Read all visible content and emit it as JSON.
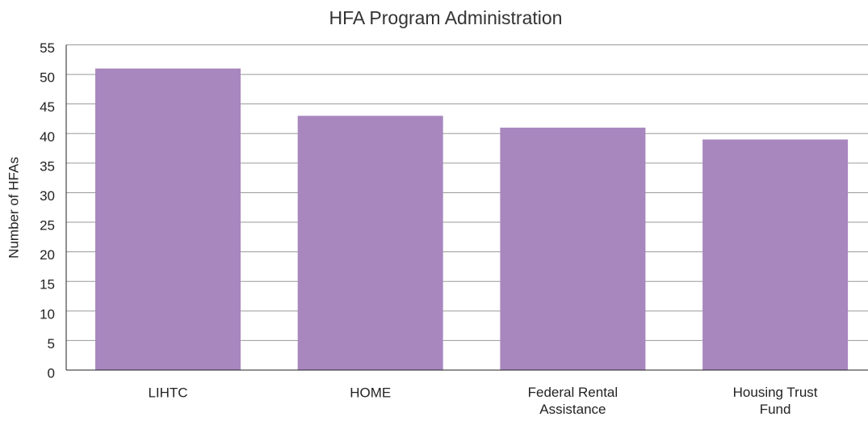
{
  "chart_data": {
    "type": "bar",
    "title": "HFA Program Administration",
    "y_label": "Number of HFAs",
    "categories": [
      "LIHTC",
      "HOME",
      "Federal Rental Assistance",
      "Housing Trust Fund"
    ],
    "values": [
      51,
      43,
      41,
      39
    ],
    "color": "#a887bf",
    "ylim": [
      0,
      55
    ],
    "yticks": [
      0,
      5,
      10,
      15,
      20,
      25,
      30,
      35,
      40,
      45,
      50,
      55
    ],
    "grid": true
  }
}
